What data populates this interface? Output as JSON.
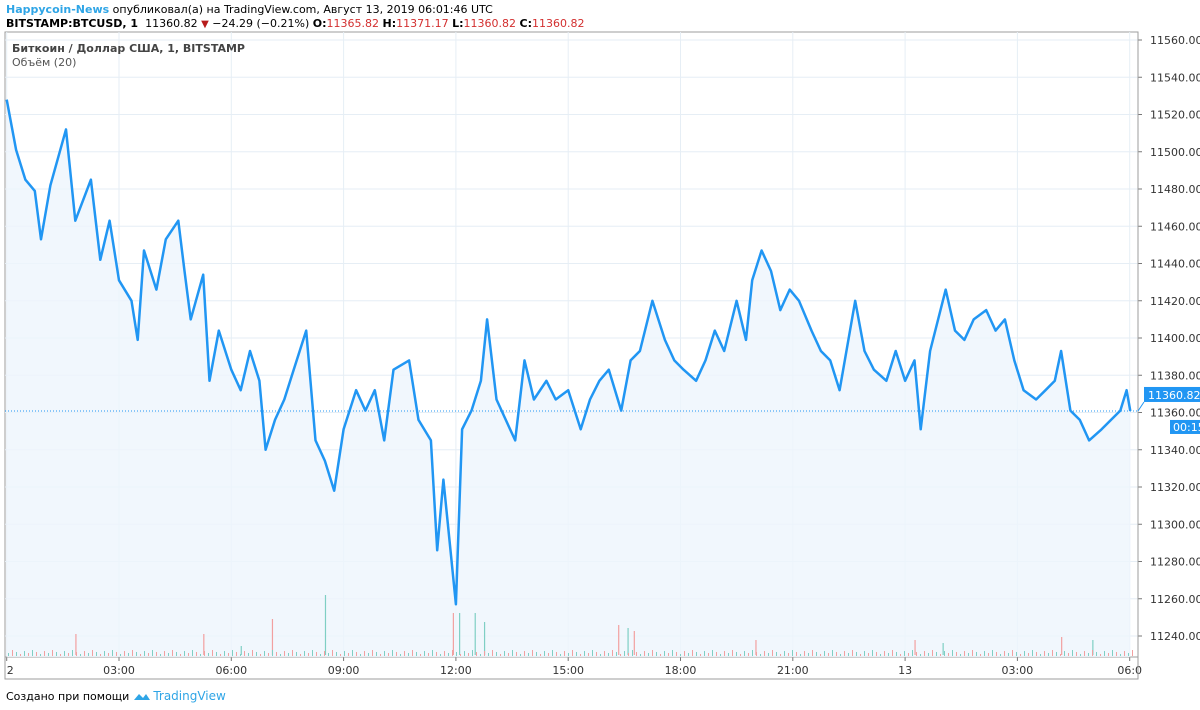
{
  "header": {
    "author": "Happycoin-News",
    "published_text": "опубликовал(а) на TradingView.com, Август 13, 2019 06:01:46 UTC",
    "symbol": "BITSTAMP:BTCUSD, 1",
    "last": "11360.82",
    "change": "−24.29 (−0.21%)",
    "o_label": "O:",
    "o": "11365.82",
    "h_label": "H:",
    "h": "11371.17",
    "l_label": "L:",
    "l": "11360.82",
    "c_label": "C:",
    "c": "11360.82"
  },
  "legend": {
    "title": "Биткоин / Доллар США, 1, BITSTAMP",
    "volume": "Объём (20)"
  },
  "price_label": {
    "value": "11360.82",
    "countdown": "00:15"
  },
  "footer": {
    "text": "Создано при помощи",
    "brand": "TradingView"
  },
  "colors": {
    "line": "#2196f3",
    "fill": "#eef5fc",
    "grid": "#e6eef5",
    "up": "#7fcfc4",
    "down": "#f2a0a0",
    "author": "#2fa5e6",
    "red": "#d32f2f"
  },
  "chart_data": {
    "type": "area",
    "y_ticks": [
      "11560.00",
      "11540.00",
      "11520.00",
      "11500.00",
      "11480.00",
      "11460.00",
      "11440.00",
      "11420.00",
      "11400.00",
      "11380.00",
      "11360.00",
      "11340.00",
      "11320.00",
      "11300.00",
      "11280.00",
      "11260.00",
      "11240.00"
    ],
    "ylim": [
      11236,
      11572
    ],
    "x_ticks": [
      {
        "label": "2",
        "time": "08-12 00:00"
      },
      {
        "label": "03:00",
        "time": "08-12 03:00"
      },
      {
        "label": "06:00",
        "time": "08-12 06:00"
      },
      {
        "label": "09:00",
        "time": "08-12 09:00"
      },
      {
        "label": "12:00",
        "time": "08-12 12:00"
      },
      {
        "label": "15:00",
        "time": "08-12 15:00"
      },
      {
        "label": "18:00",
        "time": "08-12 18:00"
      },
      {
        "label": "21:00",
        "time": "08-12 21:00"
      },
      {
        "label": "13",
        "time": "08-13 00:00"
      },
      {
        "label": "03:00",
        "time": "08-13 03:00"
      },
      {
        "label": "06:0",
        "time": "08-13 06:00"
      }
    ],
    "grid": true,
    "x": [
      "08-12 00:00",
      "08-12 00:15",
      "08-12 00:30",
      "08-12 00:45",
      "08-12 00:55",
      "08-12 01:10",
      "08-12 01:35",
      "08-12 01:50",
      "08-12 02:15",
      "08-12 02:30",
      "08-12 02:45",
      "08-12 03:00",
      "08-12 03:20",
      "08-12 03:30",
      "08-12 03:40",
      "08-12 04:00",
      "08-12 04:15",
      "08-12 04:35",
      "08-12 04:45",
      "08-12 04:55",
      "08-12 05:15",
      "08-12 05:25",
      "08-12 05:40",
      "08-12 06:00",
      "08-12 06:15",
      "08-12 06:30",
      "08-12 06:45",
      "08-12 06:55",
      "08-12 07:10",
      "08-12 07:25",
      "08-12 07:40",
      "08-12 08:00",
      "08-12 08:15",
      "08-12 08:30",
      "08-12 08:45",
      "08-12 09:00",
      "08-12 09:20",
      "08-12 09:35",
      "08-12 09:50",
      "08-12 10:05",
      "08-12 10:20",
      "08-12 10:45",
      "08-12 11:00",
      "08-12 11:20",
      "08-12 11:30",
      "08-12 11:40",
      "08-12 12:00",
      "08-12 12:10",
      "08-12 12:25",
      "08-12 12:40",
      "08-12 12:50",
      "08-12 13:05",
      "08-12 13:20",
      "08-12 13:35",
      "08-12 13:50",
      "08-12 14:05",
      "08-12 14:25",
      "08-12 14:40",
      "08-12 15:00",
      "08-12 15:20",
      "08-12 15:35",
      "08-12 15:50",
      "08-12 16:05",
      "08-12 16:25",
      "08-12 16:40",
      "08-12 16:55",
      "08-12 17:15",
      "08-12 17:35",
      "08-12 17:50",
      "08-12 18:05",
      "08-12 18:25",
      "08-12 18:40",
      "08-12 18:55",
      "08-12 19:10",
      "08-12 19:30",
      "08-12 19:45",
      "08-12 19:55",
      "08-12 20:10",
      "08-12 20:25",
      "08-12 20:40",
      "08-12 20:55",
      "08-12 21:10",
      "08-12 21:30",
      "08-12 21:45",
      "08-12 22:00",
      "08-12 22:15",
      "08-12 22:40",
      "08-12 22:55",
      "08-12 23:10",
      "08-12 23:30",
      "08-12 23:45",
      "08-13 00:00",
      "08-13 00:15",
      "08-13 00:25",
      "08-13 00:40",
      "08-13 01:05",
      "08-13 01:20",
      "08-13 01:35",
      "08-13 01:50",
      "08-13 02:10",
      "08-13 02:25",
      "08-13 02:40",
      "08-13 02:55",
      "08-13 03:10",
      "08-13 03:30",
      "08-13 03:45",
      "08-13 04:00",
      "08-13 04:10",
      "08-13 04:25",
      "08-13 04:40",
      "08-13 04:55",
      "08-13 05:15",
      "08-13 05:30",
      "08-13 05:45",
      "08-13 05:55",
      "08-13 06:01"
    ],
    "values": [
      11528,
      11501,
      11485,
      11479,
      11453,
      11482,
      11512,
      11463,
      11485,
      11442,
      11463,
      11431,
      11420,
      11399,
      11447,
      11426,
      11453,
      11463,
      11436,
      11410,
      11434,
      11377,
      11404,
      11383,
      11372,
      11393,
      11377,
      11340,
      11356,
      11367,
      11383,
      11404,
      11345,
      11334,
      11318,
      11351,
      11372,
      11361,
      11372,
      11345,
      11383,
      11388,
      11356,
      11345,
      11286,
      11324,
      11257,
      11351,
      11361,
      11377,
      11410,
      11367,
      11356,
      11345,
      11388,
      11367,
      11377,
      11367,
      11372,
      11351,
      11367,
      11377,
      11383,
      11361,
      11388,
      11393,
      11420,
      11399,
      11388,
      11383,
      11377,
      11388,
      11404,
      11393,
      11420,
      11399,
      11431,
      11447,
      11436,
      11415,
      11426,
      11420,
      11404,
      11393,
      11388,
      11372,
      11420,
      11393,
      11383,
      11377,
      11393,
      11377,
      11388,
      11351,
      11393,
      11426,
      11404,
      11399,
      11410,
      11415,
      11404,
      11410,
      11388,
      11372,
      11367,
      11372,
      11377,
      11393,
      11361,
      11356,
      11345,
      11351,
      11356,
      11361,
      11372,
      11360.82
    ],
    "last_value": 11360.82,
    "volume": [
      {
        "time": "08-12 01:50",
        "rel": 0.35,
        "dir": "down"
      },
      {
        "time": "08-12 05:15",
        "rel": 0.35,
        "dir": "down"
      },
      {
        "time": "08-12 06:15",
        "rel": 0.15,
        "dir": "up"
      },
      {
        "time": "08-12 07:05",
        "rel": 0.6,
        "dir": "down"
      },
      {
        "time": "08-12 08:30",
        "rel": 1.0,
        "dir": "up"
      },
      {
        "time": "08-12 11:55",
        "rel": 0.7,
        "dir": "down"
      },
      {
        "time": "08-12 12:05",
        "rel": 0.7,
        "dir": "up"
      },
      {
        "time": "08-12 12:30",
        "rel": 0.7,
        "dir": "up"
      },
      {
        "time": "08-12 12:45",
        "rel": 0.55,
        "dir": "up"
      },
      {
        "time": "08-12 16:20",
        "rel": 0.5,
        "dir": "down"
      },
      {
        "time": "08-12 16:35",
        "rel": 0.45,
        "dir": "up"
      },
      {
        "time": "08-12 16:45",
        "rel": 0.4,
        "dir": "down"
      },
      {
        "time": "08-12 20:00",
        "rel": 0.25,
        "dir": "down"
      },
      {
        "time": "08-13 00:15",
        "rel": 0.25,
        "dir": "down"
      },
      {
        "time": "08-13 01:00",
        "rel": 0.2,
        "dir": "up"
      },
      {
        "time": "08-13 04:10",
        "rel": 0.3,
        "dir": "down"
      },
      {
        "time": "08-13 05:00",
        "rel": 0.25,
        "dir": "up"
      }
    ]
  }
}
